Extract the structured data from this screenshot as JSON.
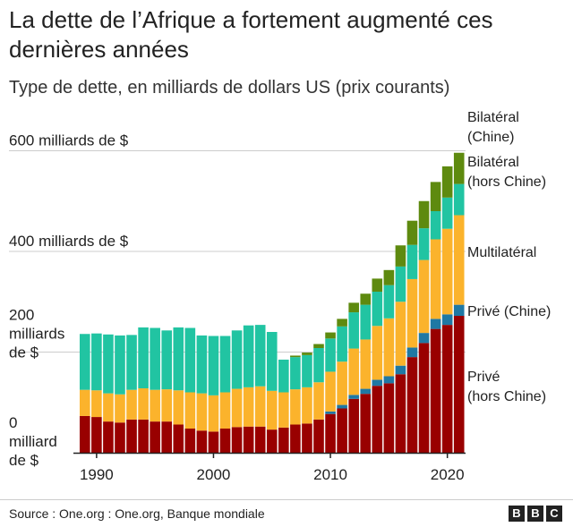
{
  "title": "La dette de l’Afrique a fortement augmenté ces dernières années",
  "subtitle": "Type de dette, en milliards de dollars US (prix courants)",
  "source": "Source : One.org : One.org, Banque mondiale",
  "brand": [
    "B",
    "B",
    "C"
  ],
  "colors": {
    "prive_hors_chine": "#990000",
    "prive_chine": "#1f78a4",
    "multilateral": "#fbb32c",
    "bilateral_hors_chine": "#21c4a2",
    "bilateral_chine": "#5e8a0f",
    "grid": "#cccccc",
    "axis": "#222222"
  },
  "chart_data": {
    "type": "bar",
    "stacked": true,
    "x": [
      1989,
      1990,
      1991,
      1992,
      1993,
      1994,
      1995,
      1996,
      1997,
      1998,
      1999,
      2000,
      2001,
      2002,
      2003,
      2004,
      2005,
      2006,
      2007,
      2008,
      2009,
      2010,
      2011,
      2012,
      2013,
      2014,
      2015,
      2016,
      2017,
      2018,
      2019,
      2020,
      2021
    ],
    "xticks": [
      1990,
      2000,
      2010,
      2020
    ],
    "yticks": [
      {
        "value": 0,
        "lines": [
          "0",
          "milliard",
          "de $"
        ]
      },
      {
        "value": 200,
        "lines": [
          "200",
          "milliards",
          "de $"
        ]
      },
      {
        "value": 400,
        "lines": [
          "400 milliards de $"
        ]
      },
      {
        "value": 600,
        "lines": [
          "600 milliards de $"
        ]
      }
    ],
    "ylim": [
      0,
      680
    ],
    "grid": true,
    "series": [
      {
        "name": "Privé (hors Chine)",
        "color_key": "prive_hors_chine",
        "values": [
          73,
          71,
          62,
          60,
          66,
          66,
          62,
          62,
          56,
          48,
          44,
          42,
          48,
          51,
          52,
          52,
          46,
          50,
          56,
          58,
          66,
          77,
          88,
          107,
          117,
          133,
          138,
          156,
          190,
          218,
          246,
          254,
          272
        ]
      },
      {
        "name": "Privé (Chine)",
        "color_key": "prive_chine",
        "values": [
          0,
          0,
          0,
          0,
          0,
          0,
          0,
          0,
          0,
          0,
          0,
          0,
          0,
          0,
          0,
          0,
          0,
          0,
          0,
          0,
          0,
          5,
          7,
          8,
          10,
          12,
          14,
          17,
          19,
          20,
          20,
          21,
          22
        ]
      },
      {
        "name": "Multilatéral",
        "color_key": "multilateral",
        "values": [
          52,
          53,
          56,
          56,
          59,
          62,
          63,
          64,
          68,
          72,
          74,
          72,
          72,
          76,
          78,
          80,
          77,
          70,
          70,
          72,
          74,
          79,
          86,
          92,
          98,
          107,
          115,
          127,
          136,
          145,
          158,
          170,
          178
        ]
      },
      {
        "name": "Bilatéral (hors Chine)",
        "color_key": "bilateral_hors_chine",
        "values": [
          111,
          113,
          117,
          117,
          109,
          121,
          123,
          117,
          125,
          128,
          115,
          118,
          112,
          116,
          123,
          122,
          117,
          65,
          64,
          64,
          68,
          66,
          70,
          72,
          69,
          68,
          66,
          70,
          68,
          63,
          56,
          62,
          62
        ]
      },
      {
        "name": "Bilatéral (Chine)",
        "color_key": "bilateral_chine",
        "values": [
          0,
          0,
          0,
          0,
          0,
          0,
          0,
          0,
          0,
          0,
          0,
          0,
          0,
          0,
          0,
          0,
          0,
          0,
          3,
          5,
          8,
          12,
          15,
          19,
          22,
          26,
          30,
          42,
          48,
          54,
          58,
          62,
          62
        ]
      }
    ]
  }
}
